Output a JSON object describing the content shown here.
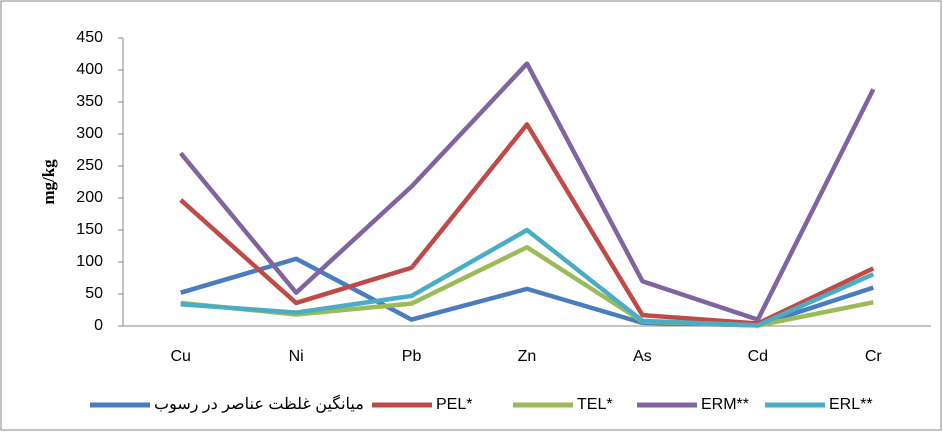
{
  "chart_data": {
    "type": "line",
    "y_label": "mg/kg",
    "categories": [
      "Cu",
      "Ni",
      "Pb",
      "Zn",
      "As",
      "Cd",
      "Cr"
    ],
    "ylim": [
      0,
      450
    ],
    "yticks": [
      0,
      50,
      100,
      150,
      200,
      250,
      300,
      350,
      400,
      450
    ],
    "series": [
      {
        "name": "میانگین غلظت عناصر در رسوب",
        "color": "#4a7dbf",
        "values": [
          52,
          105,
          10,
          58,
          5,
          1,
          60
        ]
      },
      {
        "name": "PEL*",
        "color": "#be4b48",
        "values": [
          197,
          36,
          91,
          315,
          17,
          4,
          90
        ]
      },
      {
        "name": "TEL*",
        "color": "#9bbb59",
        "values": [
          36,
          18,
          35,
          123,
          7,
          0.7,
          37
        ]
      },
      {
        "name": "ERM**",
        "color": "#8064a2",
        "values": [
          270,
          52,
          218,
          410,
          70,
          10,
          370
        ]
      },
      {
        "name": "ERL**",
        "color": "#4bacc6",
        "values": [
          34,
          21,
          47,
          150,
          8,
          1,
          81
        ]
      }
    ]
  }
}
